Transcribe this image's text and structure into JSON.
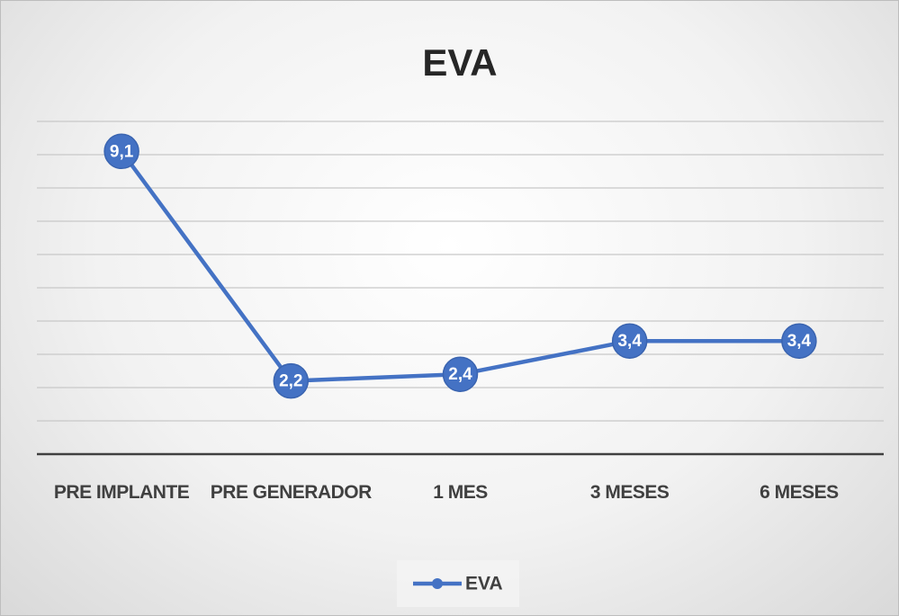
{
  "chart_data": {
    "type": "line",
    "title": "EVA",
    "categories": [
      "PRE IMPLANTE",
      "PRE GENERADOR",
      "1 MES",
      "3 MESES",
      "6 MESES"
    ],
    "series": [
      {
        "name": "EVA",
        "color": "#4472c4",
        "values": [
          9.1,
          2.2,
          2.4,
          3.4,
          3.4
        ],
        "value_labels": [
          "9,1",
          "2,2",
          "2,4",
          "3,4",
          "3,4"
        ]
      }
    ],
    "ylim": [
      0,
      10
    ],
    "yticks": [
      0,
      1,
      2,
      3,
      4,
      5,
      6,
      7,
      8,
      9,
      10
    ],
    "grid": true,
    "legend": "bottom"
  }
}
